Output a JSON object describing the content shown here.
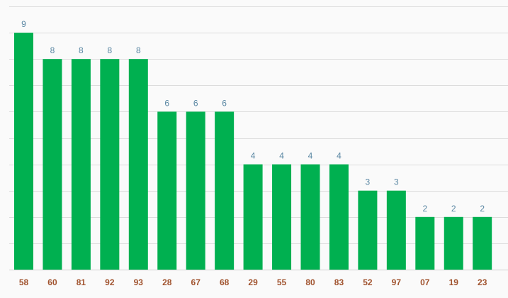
{
  "chart_data": {
    "type": "bar",
    "categories": [
      "58",
      "60",
      "81",
      "92",
      "93",
      "28",
      "67",
      "68",
      "29",
      "55",
      "80",
      "83",
      "52",
      "97",
      "07",
      "19",
      "23"
    ],
    "values": [
      9,
      8,
      8,
      8,
      8,
      6,
      6,
      6,
      4,
      4,
      4,
      4,
      3,
      3,
      2,
      2,
      2
    ],
    "title": "",
    "xlabel": "",
    "ylabel": "",
    "ylim": [
      0,
      10
    ],
    "grid": true,
    "data_labels": true,
    "colors": {
      "bar": "#00b050",
      "data_label": "#5a87a3",
      "tick_label": "#a0522d",
      "grid": "#dcdcdc",
      "background": "#fafafa"
    }
  }
}
